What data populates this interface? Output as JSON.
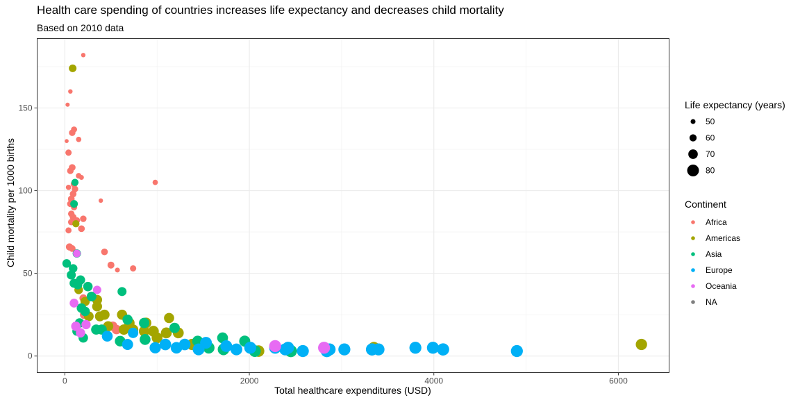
{
  "chart_data": {
    "type": "scatter",
    "title": "Health care spending of countries increases life expectancy and decreases child mortality",
    "subtitle": "Based on 2010 data",
    "xlabel": "Total healthcare expenditures (USD)",
    "ylabel": "Child mortality per 1000 births",
    "xlim": [
      -300,
      6550
    ],
    "ylim": [
      -10,
      192
    ],
    "xticks": [
      0,
      2000,
      4000,
      6000
    ],
    "yticks": [
      0,
      50,
      100,
      150
    ],
    "grid": true,
    "legend_position": "right",
    "size_legend": {
      "title": "Life expectancy (years)",
      "entries": [
        {
          "label": "50",
          "value": 50
        },
        {
          "label": "60",
          "value": 60
        },
        {
          "label": "70",
          "value": 70
        },
        {
          "label": "80",
          "value": 80
        }
      ]
    },
    "color_legend": {
      "title": "Continent",
      "entries": [
        {
          "label": "Africa",
          "color": "#F8766D"
        },
        {
          "label": "Americas",
          "color": "#A3A500"
        },
        {
          "label": "Asia",
          "color": "#00BF7D"
        },
        {
          "label": "Europe",
          "color": "#00B0F6"
        },
        {
          "label": "Oceania",
          "color": "#E76BF3"
        },
        {
          "label": "NA",
          "color": "#7F7F7F"
        }
      ]
    },
    "series": [
      {
        "name": "Africa",
        "color": "#F8766D",
        "points": [
          {
            "x": 200,
            "y": 182,
            "life": 48
          },
          {
            "x": 30,
            "y": 152,
            "life": 47
          },
          {
            "x": 60,
            "y": 160,
            "life": 48
          },
          {
            "x": 20,
            "y": 130,
            "life": 46
          },
          {
            "x": 150,
            "y": 131,
            "life": 52
          },
          {
            "x": 100,
            "y": 137,
            "life": 55
          },
          {
            "x": 80,
            "y": 135,
            "life": 57
          },
          {
            "x": 40,
            "y": 123,
            "life": 56
          },
          {
            "x": 80,
            "y": 114,
            "life": 58
          },
          {
            "x": 60,
            "y": 112,
            "life": 57
          },
          {
            "x": 150,
            "y": 109,
            "life": 53
          },
          {
            "x": 180,
            "y": 108,
            "life": 50
          },
          {
            "x": 40,
            "y": 102,
            "life": 52
          },
          {
            "x": 100,
            "y": 104,
            "life": 58
          },
          {
            "x": 110,
            "y": 101,
            "life": 57
          },
          {
            "x": 90,
            "y": 98,
            "life": 58
          },
          {
            "x": 70,
            "y": 95,
            "life": 58
          },
          {
            "x": 60,
            "y": 92,
            "life": 57
          },
          {
            "x": 100,
            "y": 90,
            "life": 56
          },
          {
            "x": 70,
            "y": 86,
            "life": 57
          },
          {
            "x": 90,
            "y": 84,
            "life": 58
          },
          {
            "x": 70,
            "y": 81,
            "life": 57
          },
          {
            "x": 130,
            "y": 82,
            "life": 57
          },
          {
            "x": 200,
            "y": 83,
            "life": 57
          },
          {
            "x": 180,
            "y": 77,
            "life": 58
          },
          {
            "x": 40,
            "y": 76,
            "life": 55
          },
          {
            "x": 50,
            "y": 66,
            "life": 60
          },
          {
            "x": 80,
            "y": 65,
            "life": 58
          },
          {
            "x": 390,
            "y": 94,
            "life": 48
          },
          {
            "x": 980,
            "y": 105,
            "life": 52
          },
          {
            "x": 430,
            "y": 63,
            "life": 58
          },
          {
            "x": 500,
            "y": 55,
            "life": 59
          },
          {
            "x": 570,
            "y": 52,
            "life": 50
          },
          {
            "x": 740,
            "y": 53,
            "life": 56
          },
          {
            "x": 200,
            "y": 35,
            "life": 62
          },
          {
            "x": 210,
            "y": 25,
            "life": 66
          },
          {
            "x": 520,
            "y": 18,
            "life": 70
          },
          {
            "x": 560,
            "y": 16,
            "life": 70
          }
        ]
      },
      {
        "name": "Americas",
        "color": "#A3A500",
        "points": [
          {
            "x": 85,
            "y": 174,
            "life": 62
          },
          {
            "x": 120,
            "y": 80,
            "life": 60
          },
          {
            "x": 150,
            "y": 40,
            "life": 66
          },
          {
            "x": 220,
            "y": 33,
            "life": 69
          },
          {
            "x": 260,
            "y": 24,
            "life": 71
          },
          {
            "x": 350,
            "y": 34,
            "life": 72
          },
          {
            "x": 350,
            "y": 30,
            "life": 72
          },
          {
            "x": 380,
            "y": 24,
            "life": 72
          },
          {
            "x": 430,
            "y": 25,
            "life": 73
          },
          {
            "x": 470,
            "y": 18,
            "life": 73
          },
          {
            "x": 620,
            "y": 25,
            "life": 73
          },
          {
            "x": 640,
            "y": 16,
            "life": 74
          },
          {
            "x": 700,
            "y": 20,
            "life": 74
          },
          {
            "x": 740,
            "y": 16,
            "life": 74
          },
          {
            "x": 860,
            "y": 15,
            "life": 75
          },
          {
            "x": 880,
            "y": 20,
            "life": 75
          },
          {
            "x": 960,
            "y": 15,
            "life": 76
          },
          {
            "x": 1000,
            "y": 11,
            "life": 76
          },
          {
            "x": 1130,
            "y": 23,
            "life": 73
          },
          {
            "x": 1100,
            "y": 14,
            "life": 76
          },
          {
            "x": 1230,
            "y": 14,
            "life": 76
          },
          {
            "x": 1380,
            "y": 7,
            "life": 78
          },
          {
            "x": 1540,
            "y": 6,
            "life": 78
          },
          {
            "x": 2100,
            "y": 3,
            "life": 79
          },
          {
            "x": 3350,
            "y": 5,
            "life": 80
          },
          {
            "x": 6250,
            "y": 7,
            "life": 78
          }
        ]
      },
      {
        "name": "Asia",
        "color": "#00BF7D",
        "points": [
          {
            "x": 110,
            "y": 105,
            "life": 60
          },
          {
            "x": 100,
            "y": 92,
            "life": 62
          },
          {
            "x": 130,
            "y": 62,
            "life": 65
          },
          {
            "x": 20,
            "y": 56,
            "life": 66
          },
          {
            "x": 90,
            "y": 53,
            "life": 66
          },
          {
            "x": 70,
            "y": 49,
            "life": 68
          },
          {
            "x": 170,
            "y": 46,
            "life": 69
          },
          {
            "x": 100,
            "y": 44,
            "life": 68
          },
          {
            "x": 140,
            "y": 43,
            "life": 68
          },
          {
            "x": 250,
            "y": 42,
            "life": 70
          },
          {
            "x": 620,
            "y": 39,
            "life": 68
          },
          {
            "x": 290,
            "y": 36,
            "life": 71
          },
          {
            "x": 180,
            "y": 29,
            "life": 70
          },
          {
            "x": 220,
            "y": 27,
            "life": 70
          },
          {
            "x": 160,
            "y": 20,
            "life": 70
          },
          {
            "x": 130,
            "y": 15,
            "life": 68
          },
          {
            "x": 200,
            "y": 11,
            "life": 70
          },
          {
            "x": 340,
            "y": 16,
            "life": 73
          },
          {
            "x": 400,
            "y": 16,
            "life": 73
          },
          {
            "x": 600,
            "y": 9,
            "life": 75
          },
          {
            "x": 680,
            "y": 22,
            "life": 73
          },
          {
            "x": 860,
            "y": 20,
            "life": 74
          },
          {
            "x": 870,
            "y": 10,
            "life": 76
          },
          {
            "x": 1190,
            "y": 17,
            "life": 74
          },
          {
            "x": 1440,
            "y": 9,
            "life": 76
          },
          {
            "x": 1710,
            "y": 11,
            "life": 76
          },
          {
            "x": 1560,
            "y": 5,
            "life": 79
          },
          {
            "x": 1720,
            "y": 4,
            "life": 79
          },
          {
            "x": 1950,
            "y": 9,
            "life": 77
          },
          {
            "x": 2060,
            "y": 3,
            "life": 80
          },
          {
            "x": 2450,
            "y": 3,
            "life": 82
          }
        ]
      },
      {
        "name": "Europe",
        "color": "#00B0F6",
        "points": [
          {
            "x": 460,
            "y": 12,
            "life": 76
          },
          {
            "x": 680,
            "y": 7,
            "life": 77
          },
          {
            "x": 740,
            "y": 14,
            "life": 74
          },
          {
            "x": 980,
            "y": 5,
            "life": 78
          },
          {
            "x": 1090,
            "y": 7,
            "life": 79
          },
          {
            "x": 1210,
            "y": 5,
            "life": 79
          },
          {
            "x": 1300,
            "y": 7,
            "life": 79
          },
          {
            "x": 1450,
            "y": 4,
            "life": 80
          },
          {
            "x": 1530,
            "y": 8,
            "life": 80
          },
          {
            "x": 1750,
            "y": 6,
            "life": 80
          },
          {
            "x": 1860,
            "y": 4,
            "life": 80
          },
          {
            "x": 2010,
            "y": 5,
            "life": 81
          },
          {
            "x": 2280,
            "y": 5,
            "life": 81
          },
          {
            "x": 2390,
            "y": 4,
            "life": 81
          },
          {
            "x": 2420,
            "y": 5,
            "life": 81
          },
          {
            "x": 2580,
            "y": 3,
            "life": 81
          },
          {
            "x": 2840,
            "y": 3,
            "life": 82
          },
          {
            "x": 2870,
            "y": 4,
            "life": 81
          },
          {
            "x": 3030,
            "y": 4,
            "life": 81
          },
          {
            "x": 3330,
            "y": 4,
            "life": 82
          },
          {
            "x": 3400,
            "y": 4,
            "life": 81
          },
          {
            "x": 3800,
            "y": 5,
            "life": 81
          },
          {
            "x": 3990,
            "y": 5,
            "life": 81
          },
          {
            "x": 4100,
            "y": 4,
            "life": 82
          },
          {
            "x": 4900,
            "y": 3,
            "life": 81
          }
        ]
      },
      {
        "name": "Oceania",
        "color": "#E76BF3",
        "points": [
          {
            "x": 130,
            "y": 62,
            "life": 62
          },
          {
            "x": 350,
            "y": 40,
            "life": 65
          },
          {
            "x": 100,
            "y": 32,
            "life": 67
          },
          {
            "x": 120,
            "y": 18,
            "life": 70
          },
          {
            "x": 170,
            "y": 14,
            "life": 69
          },
          {
            "x": 230,
            "y": 19,
            "life": 69
          },
          {
            "x": 2280,
            "y": 6,
            "life": 81
          },
          {
            "x": 2810,
            "y": 5,
            "life": 81
          }
        ]
      }
    ]
  }
}
